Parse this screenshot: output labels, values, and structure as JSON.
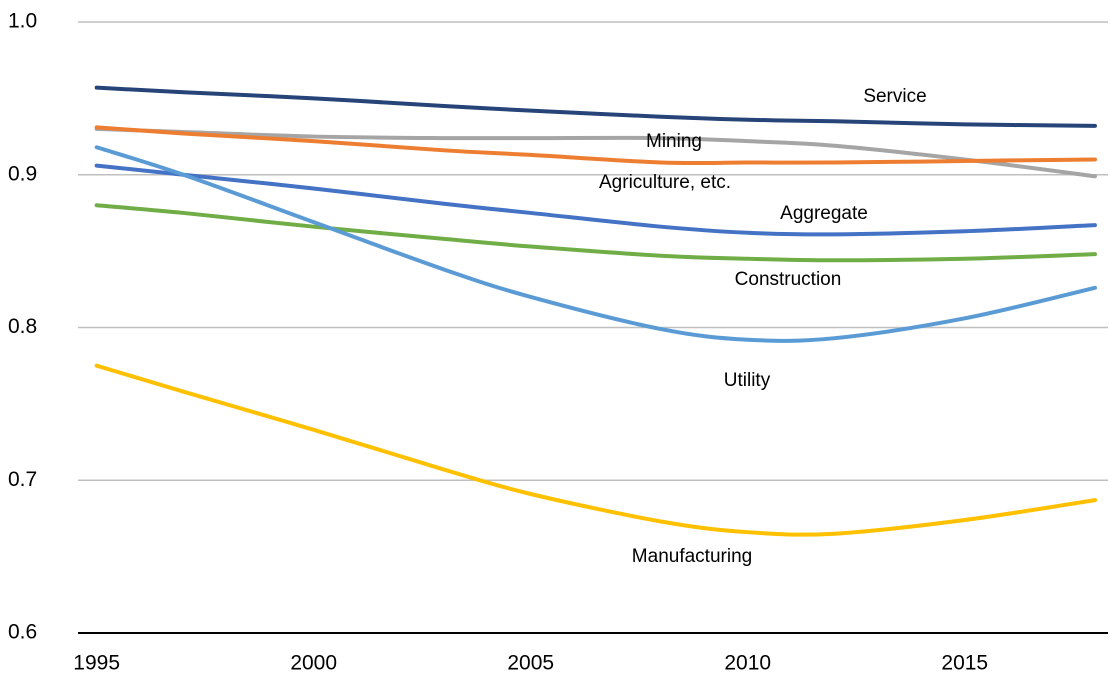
{
  "chart_data": {
    "type": "line",
    "x": [
      1995,
      1997,
      2000,
      2003,
      2005,
      2008,
      2010,
      2012,
      2015,
      2018
    ],
    "series": [
      {
        "name": "Service",
        "color": "#264478",
        "values": [
          0.957,
          0.954,
          0.95,
          0.945,
          0.942,
          0.938,
          0.936,
          0.935,
          0.933,
          0.932
        ]
      },
      {
        "name": "Mining",
        "color": "#a5a5a5",
        "values": [
          0.93,
          0.928,
          0.925,
          0.924,
          0.924,
          0.924,
          0.922,
          0.919,
          0.91,
          0.899
        ]
      },
      {
        "name": "Agriculture, etc.",
        "color": "#ed7d31",
        "values": [
          0.931,
          0.927,
          0.922,
          0.916,
          0.913,
          0.908,
          0.908,
          0.908,
          0.909,
          0.91
        ]
      },
      {
        "name": "Aggregate",
        "color": "#4472c4",
        "values": [
          0.906,
          0.9,
          0.891,
          0.881,
          0.875,
          0.866,
          0.862,
          0.861,
          0.863,
          0.867
        ]
      },
      {
        "name": "Construction",
        "color": "#70ad47",
        "values": [
          0.88,
          0.875,
          0.866,
          0.858,
          0.853,
          0.847,
          0.845,
          0.844,
          0.845,
          0.848
        ]
      },
      {
        "name": "Utility",
        "color": "#5b9bd5",
        "values": [
          0.918,
          0.9,
          0.869,
          0.838,
          0.82,
          0.799,
          0.792,
          0.793,
          0.806,
          0.826
        ]
      },
      {
        "name": "Manufacturing",
        "color": "#ffc000",
        "values": [
          0.775,
          0.758,
          0.733,
          0.707,
          0.691,
          0.673,
          0.666,
          0.665,
          0.674,
          0.687
        ]
      }
    ],
    "xlim": [
      1994.57,
      2018.3
    ],
    "xticks": [
      1995,
      2000,
      2005,
      2010,
      2015
    ],
    "ylim": [
      0.6,
      1.0
    ],
    "yticks": [
      0.6,
      0.7,
      0.8,
      0.9,
      {
        "value": 1.0,
        "label": "1.0"
      }
    ],
    "grid": true
  }
}
